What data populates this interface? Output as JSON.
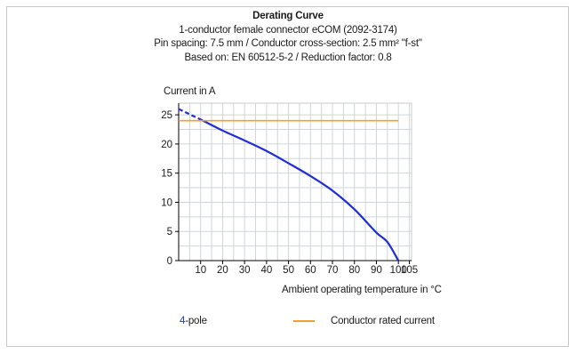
{
  "header": {
    "title": "Derating Curve",
    "line1": "1-conductor female connector eCOM (2092-3174)",
    "line2": "Pin spacing: 7.5 mm / Conductor cross-section: 2.5 mm² \"f-st\"",
    "line3": "Based on: EN 60512-5-2 / Reduction factor: 0.8"
  },
  "legend": {
    "series_number": "4",
    "series_suffix": "-pole",
    "rated_label": "Conductor rated current"
  },
  "chart_data": {
    "type": "line",
    "ylabel": "Current in A",
    "xlabel": "Ambient operating temperature in °C",
    "xlim": [
      0,
      106
    ],
    "ylim": [
      0,
      27
    ],
    "x_ticks": [
      10,
      20,
      30,
      40,
      50,
      60,
      70,
      80,
      90,
      100,
      105
    ],
    "y_ticks": [
      0,
      5,
      10,
      15,
      20,
      25
    ],
    "grid": true,
    "series": [
      {
        "name": "4-pole",
        "color": "#1f2ed6",
        "x": [
          0,
          10,
          20,
          30,
          40,
          50,
          60,
          70,
          80,
          90,
          95,
          100
        ],
        "y": [
          26,
          24.2,
          22.3,
          20.6,
          18.8,
          16.7,
          14.5,
          12.0,
          8.8,
          4.8,
          3.2,
          0
        ],
        "dashed_until_x": 10
      },
      {
        "name": "Conductor rated current",
        "color": "#f0a030",
        "x": [
          0,
          100
        ],
        "y": [
          24,
          24
        ]
      }
    ]
  }
}
